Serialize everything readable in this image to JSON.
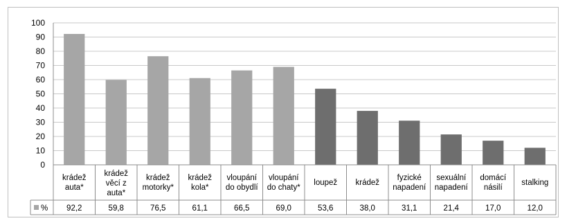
{
  "chart_data": {
    "type": "bar",
    "categories": [
      [
        "krádež",
        "auta*"
      ],
      [
        "krádež",
        "věcí z",
        "auta*"
      ],
      [
        "krádež",
        "motorky*"
      ],
      [
        "krádež",
        "kola*"
      ],
      [
        "vloupání",
        "do obydlí"
      ],
      [
        "vloupání",
        "do chaty*"
      ],
      [
        "loupež"
      ],
      [
        "krádež"
      ],
      [
        "fyzické",
        "napadení"
      ],
      [
        "sexuální",
        "napadení"
      ],
      [
        "domácí",
        "násilí"
      ],
      [
        "stalking"
      ]
    ],
    "series": [
      {
        "name": "%",
        "values": [
          92.2,
          59.8,
          76.5,
          61.1,
          66.5,
          69.0,
          53.6,
          38.0,
          31.1,
          21.4,
          17.0,
          12.0
        ],
        "labels": [
          "92,2",
          "59,8",
          "76,5",
          "61,1",
          "66,5",
          "69,0",
          "53,6",
          "38,0",
          "31,1",
          "21,4",
          "17,0",
          "12,0"
        ]
      }
    ],
    "bar_colors": [
      "#a6a6a6",
      "#a6a6a6",
      "#a6a6a6",
      "#a6a6a6",
      "#a6a6a6",
      "#a6a6a6",
      "#6e6e6e",
      "#6e6e6e",
      "#6e6e6e",
      "#6e6e6e",
      "#6e6e6e",
      "#6e6e6e"
    ],
    "legend_marker_color": "#a6a6a6",
    "y_ticks": [
      "0",
      "10",
      "20",
      "30",
      "40",
      "50",
      "60",
      "70",
      "80",
      "90",
      "100"
    ],
    "ylim": [
      0,
      100
    ],
    "grid": true,
    "legend": "data-table-row",
    "title": "",
    "xlabel": "",
    "ylabel": ""
  }
}
